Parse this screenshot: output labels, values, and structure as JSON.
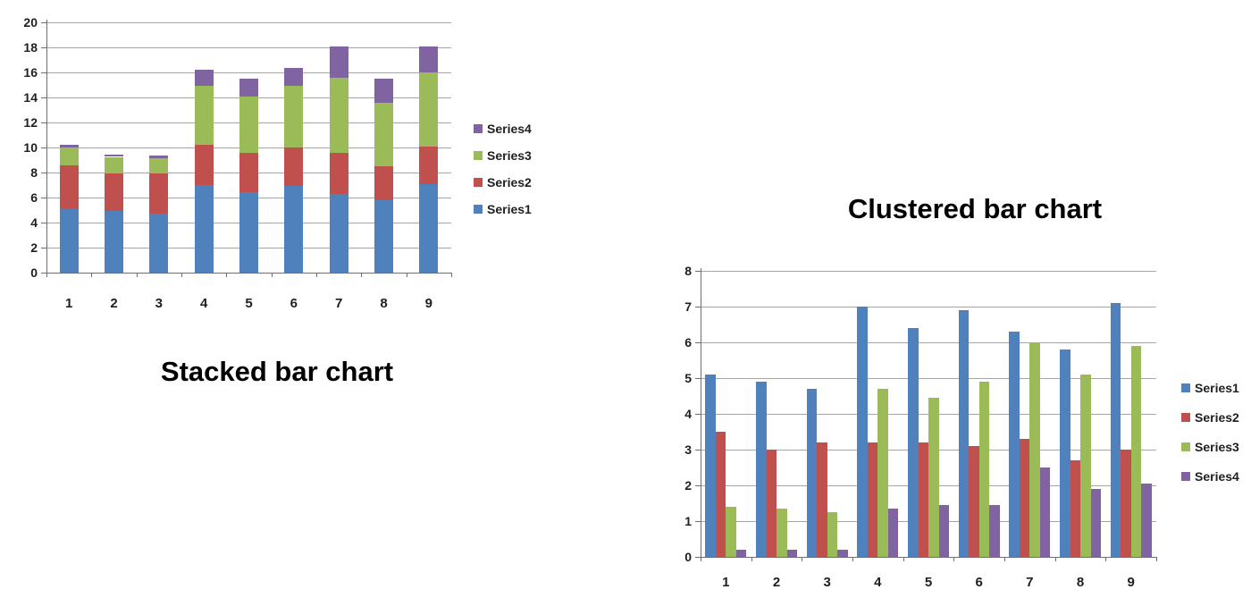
{
  "page": {
    "background": "#ffffff"
  },
  "style_colors": {
    "gridline": "#a6a6a6",
    "axis_line": "#6f6f6f",
    "label_text": "#1f1f1f",
    "title_text": "#000000"
  },
  "series_colors": {
    "Series1": "#4F81BD",
    "Series2": "#C0504D",
    "Series3": "#9BBB59",
    "Series4": "#8064A2"
  },
  "chart_data": [
    {
      "id": "stacked",
      "type": "bar",
      "variant": "stacked",
      "title": "Stacked bar chart",
      "title_position": "below",
      "categories": [
        "1",
        "2",
        "3",
        "4",
        "5",
        "6",
        "7",
        "8",
        "9"
      ],
      "series": [
        {
          "name": "Series1",
          "color": "#4F81BD",
          "values": [
            5.1,
            4.9,
            4.7,
            7.0,
            6.4,
            6.9,
            6.3,
            5.8,
            7.1
          ]
        },
        {
          "name": "Series2",
          "color": "#C0504D",
          "values": [
            3.5,
            3.0,
            3.2,
            3.2,
            3.2,
            3.1,
            3.3,
            2.7,
            3.0
          ]
        },
        {
          "name": "Series3",
          "color": "#9BBB59",
          "values": [
            1.4,
            1.35,
            1.25,
            4.7,
            4.45,
            4.9,
            6.0,
            5.1,
            5.9
          ]
        },
        {
          "name": "Series4",
          "color": "#8064A2",
          "values": [
            0.2,
            0.2,
            0.2,
            1.35,
            1.45,
            1.45,
            2.5,
            1.9,
            2.05
          ]
        }
      ],
      "xlabel": "",
      "ylabel": "",
      "ylim": [
        0,
        20
      ],
      "ytick_step": 2,
      "grid": true,
      "legend": {
        "position": "right",
        "entries": [
          "Series4",
          "Series3",
          "Series2",
          "Series1"
        ]
      }
    },
    {
      "id": "clustered",
      "type": "bar",
      "variant": "clustered",
      "title": "Clustered bar chart",
      "title_position": "above",
      "categories": [
        "1",
        "2",
        "3",
        "4",
        "5",
        "6",
        "7",
        "8",
        "9"
      ],
      "series": [
        {
          "name": "Series1",
          "color": "#4F81BD",
          "values": [
            5.1,
            4.9,
            4.7,
            7.0,
            6.4,
            6.9,
            6.3,
            5.8,
            7.1
          ]
        },
        {
          "name": "Series2",
          "color": "#C0504D",
          "values": [
            3.5,
            3.0,
            3.2,
            3.2,
            3.2,
            3.1,
            3.3,
            2.7,
            3.0
          ]
        },
        {
          "name": "Series3",
          "color": "#9BBB59",
          "values": [
            1.4,
            1.35,
            1.25,
            4.7,
            4.45,
            4.9,
            6.0,
            5.1,
            5.9
          ]
        },
        {
          "name": "Series4",
          "color": "#8064A2",
          "values": [
            0.2,
            0.2,
            0.2,
            1.35,
            1.45,
            1.45,
            2.5,
            1.9,
            2.05
          ]
        }
      ],
      "xlabel": "",
      "ylabel": "",
      "ylim": [
        0,
        8
      ],
      "ytick_step": 1,
      "grid": true,
      "legend": {
        "position": "right",
        "entries": [
          "Series1",
          "Series2",
          "Series3",
          "Series4"
        ]
      }
    }
  ]
}
